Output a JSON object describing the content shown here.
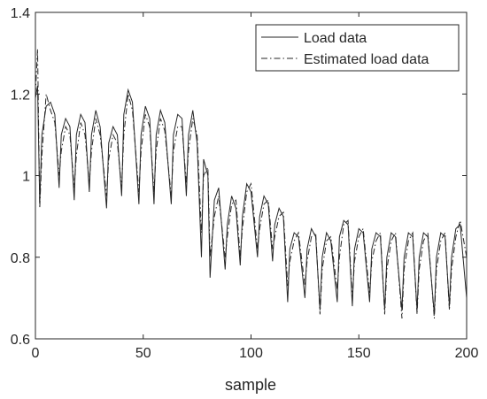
{
  "chart_data": {
    "type": "line",
    "xlabel": "sample",
    "x": [
      0,
      1,
      2,
      3,
      5,
      7,
      9,
      11,
      12,
      14,
      16,
      18,
      19,
      21,
      23,
      25,
      26,
      28,
      30,
      33,
      34,
      36,
      38,
      40,
      41,
      43,
      45,
      48,
      49,
      51,
      53,
      55,
      56,
      58,
      60,
      63,
      64,
      66,
      68,
      70,
      71,
      73,
      75,
      77,
      78,
      80,
      81,
      83,
      85,
      88,
      89,
      91,
      93,
      95,
      96,
      98,
      100,
      103,
      104,
      106,
      108,
      110,
      111,
      113,
      115,
      117,
      118,
      120,
      122,
      125,
      126,
      128,
      130,
      132,
      133,
      135,
      137,
      140,
      141,
      143,
      145,
      147,
      148,
      150,
      152,
      155,
      156,
      158,
      160,
      162,
      163,
      165,
      167,
      170,
      171,
      173,
      175,
      177,
      178,
      180,
      182,
      185,
      186,
      188,
      190,
      192,
      193,
      195,
      197,
      200
    ],
    "series": [
      {
        "name": "Load data",
        "color": "#262626",
        "dash": "solid",
        "values": [
          1.19,
          1.22,
          0.93,
          1.1,
          1.17,
          1.18,
          1.15,
          0.97,
          1.1,
          1.14,
          1.12,
          0.94,
          1.1,
          1.15,
          1.13,
          0.96,
          1.1,
          1.16,
          1.12,
          0.92,
          1.08,
          1.12,
          1.1,
          0.95,
          1.15,
          1.21,
          1.18,
          0.93,
          1.1,
          1.17,
          1.14,
          0.93,
          1.1,
          1.16,
          1.13,
          0.93,
          1.1,
          1.15,
          1.14,
          0.95,
          1.1,
          1.16,
          1.08,
          0.8,
          1.04,
          1.0,
          0.75,
          0.94,
          0.97,
          0.77,
          0.88,
          0.95,
          0.92,
          0.78,
          0.9,
          0.98,
          0.96,
          0.8,
          0.9,
          0.95,
          0.93,
          0.79,
          0.88,
          0.92,
          0.9,
          0.69,
          0.82,
          0.86,
          0.85,
          0.7,
          0.82,
          0.87,
          0.85,
          0.67,
          0.8,
          0.86,
          0.84,
          0.69,
          0.85,
          0.89,
          0.88,
          0.68,
          0.82,
          0.87,
          0.86,
          0.69,
          0.82,
          0.86,
          0.85,
          0.67,
          0.8,
          0.86,
          0.85,
          0.67,
          0.8,
          0.86,
          0.85,
          0.67,
          0.8,
          0.86,
          0.85,
          0.66,
          0.8,
          0.86,
          0.85,
          0.68,
          0.8,
          0.87,
          0.88,
          0.7
        ]
      },
      {
        "name": "Estimated load data",
        "color": "#262626",
        "dash": "dashdot",
        "values": [
          1.2,
          1.31,
          0.92,
          1.05,
          1.2,
          1.16,
          1.13,
          1.0,
          1.06,
          1.12,
          1.1,
          0.97,
          1.05,
          1.13,
          1.1,
          0.98,
          1.06,
          1.14,
          1.1,
          0.95,
          1.04,
          1.1,
          1.08,
          0.97,
          1.1,
          1.2,
          1.16,
          0.96,
          1.06,
          1.15,
          1.12,
          0.96,
          1.06,
          1.14,
          1.11,
          0.95,
          1.06,
          1.12,
          1.12,
          0.98,
          1.06,
          1.14,
          1.1,
          0.86,
          1.0,
          1.02,
          0.8,
          0.9,
          0.95,
          0.8,
          0.85,
          0.93,
          0.94,
          0.8,
          0.87,
          0.96,
          0.98,
          0.82,
          0.87,
          0.93,
          0.94,
          0.82,
          0.85,
          0.9,
          0.91,
          0.73,
          0.79,
          0.84,
          0.86,
          0.73,
          0.79,
          0.85,
          0.86,
          0.66,
          0.77,
          0.84,
          0.85,
          0.72,
          0.8,
          0.88,
          0.89,
          0.7,
          0.79,
          0.85,
          0.87,
          0.71,
          0.79,
          0.84,
          0.86,
          0.66,
          0.77,
          0.84,
          0.86,
          0.65,
          0.77,
          0.84,
          0.86,
          0.66,
          0.77,
          0.84,
          0.86,
          0.65,
          0.77,
          0.84,
          0.86,
          0.67,
          0.77,
          0.85,
          0.89,
          0.8
        ]
      }
    ],
    "xlim": [
      0,
      200
    ],
    "xticks": [
      0,
      50,
      100,
      150,
      200
    ],
    "ylim": [
      0.6,
      1.4
    ],
    "yticks": [
      0.6,
      0.8,
      1,
      1.2,
      1.4
    ],
    "grid": false,
    "legend": "northeast"
  }
}
